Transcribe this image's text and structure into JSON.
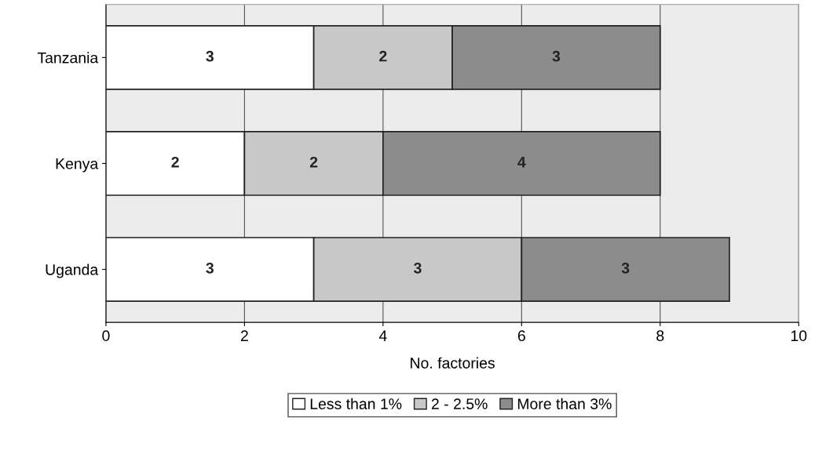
{
  "chart_data": {
    "type": "bar",
    "orientation": "horizontal",
    "stacked": true,
    "categories": [
      "Tanzania",
      "Kenya",
      "Uganda"
    ],
    "series": [
      {
        "name": "Less than 1%",
        "color": "#ffffff",
        "values": [
          3,
          2,
          3
        ]
      },
      {
        "name": "2 - 2.5%",
        "color": "#c8c8c8",
        "values": [
          2,
          2,
          3
        ]
      },
      {
        "name": "More than 3%",
        "color": "#8c8c8c",
        "values": [
          3,
          4,
          3
        ]
      }
    ],
    "xlabel": "No. factories",
    "xlim": [
      0,
      10
    ],
    "xticks": [
      0,
      2,
      4,
      6,
      8,
      10
    ],
    "grid": "x",
    "legend": "bottom",
    "data_labels": true
  }
}
